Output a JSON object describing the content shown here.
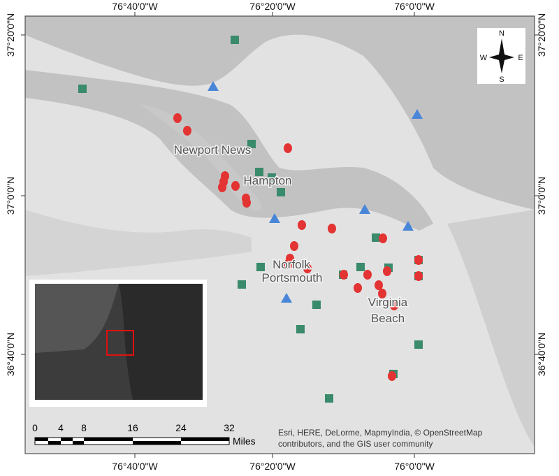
{
  "axes": {
    "top": [
      "76°40'0\"W",
      "76°20'0\"W",
      "76°0'0\"W"
    ],
    "bottom": [
      "76°40'0\"W",
      "76°20'0\"W",
      "76°0'0\"W"
    ],
    "left": [
      "37°20'0\"N",
      "37°0'0\"N",
      "36°40'0\"N"
    ],
    "right": [
      "37°20'0\"N",
      "37°0'0\"N",
      "36°40'0\"N"
    ]
  },
  "cities": [
    "Newport News",
    "Hampton",
    "Norfolk",
    "Portsmouth",
    "Virginia",
    "Beach"
  ],
  "compass": {
    "n": "N",
    "w": "W",
    "e": "E",
    "s": "S"
  },
  "scale_bar": {
    "ticks": [
      0,
      4,
      8,
      16,
      24,
      32
    ],
    "unit": "Miles"
  },
  "attribution": [
    "Esri, HERE, DeLorme, MapmyIndia, © OpenStreetMap",
    "contributors, and the GIS user community"
  ]
}
